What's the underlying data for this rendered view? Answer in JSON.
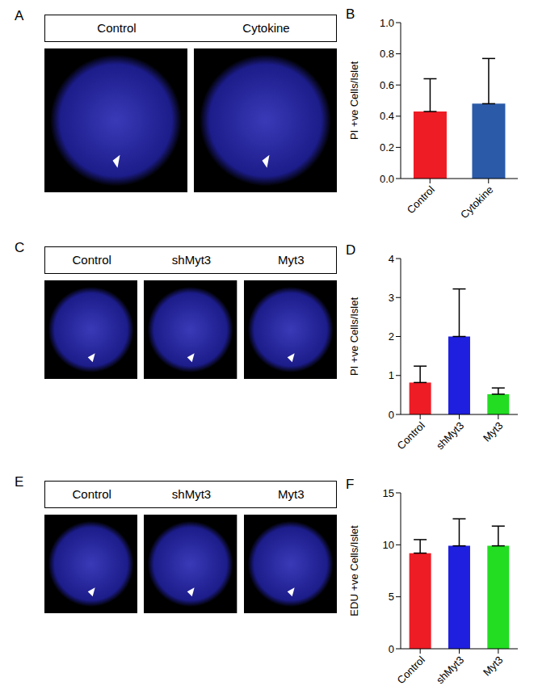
{
  "image_panels": [
    {
      "panel": "A",
      "headers": [
        "Control",
        "Cytokine"
      ]
    },
    {
      "panel": "C",
      "headers": [
        "Control",
        "shMyt3",
        "Myt3"
      ]
    },
    {
      "panel": "E",
      "headers": [
        "Control",
        "shMyt3",
        "Myt3"
      ]
    }
  ],
  "chart_data": [
    {
      "type": "bar",
      "panel": "B",
      "y_label": "PI +ve Cells/Islet",
      "categories": [
        "Control",
        "Cytokine"
      ],
      "values": [
        0.43,
        0.48
      ],
      "errors": [
        0.21,
        0.29
      ],
      "colors": [
        "#ee1c25",
        "#2b5aa8"
      ],
      "ylim": [
        0,
        1
      ],
      "yticks": [
        {
          "value": 0,
          "label": "0.0"
        },
        0.2,
        0.4,
        0.6,
        0.8,
        {
          "value": 1,
          "label": "1.0"
        }
      ]
    },
    {
      "type": "bar",
      "panel": "D",
      "y_label": "PI +ve Cells/Islet",
      "categories": [
        "Control",
        "shMyt3",
        "Myt3"
      ],
      "values": [
        0.82,
        2.0,
        0.52
      ],
      "errors": [
        0.42,
        1.22,
        0.16
      ],
      "colors": [
        "#ee1c25",
        "#1f1fe0",
        "#22dd22"
      ],
      "ylim": [
        0,
        4
      ],
      "yticks": [
        0,
        1,
        2,
        3,
        4
      ]
    },
    {
      "type": "bar",
      "panel": "F",
      "y_label": "EDU +ve Cells/Islet",
      "categories": [
        "Control",
        "shMyt3",
        "Myt3"
      ],
      "values": [
        9.2,
        9.9,
        9.9
      ],
      "errors": [
        1.3,
        2.6,
        1.9
      ],
      "colors": [
        "#ee1c25",
        "#1f1fe0",
        "#22dd22"
      ],
      "ylim": [
        0,
        15
      ],
      "yticks": [
        0,
        5,
        10,
        15
      ]
    }
  ]
}
